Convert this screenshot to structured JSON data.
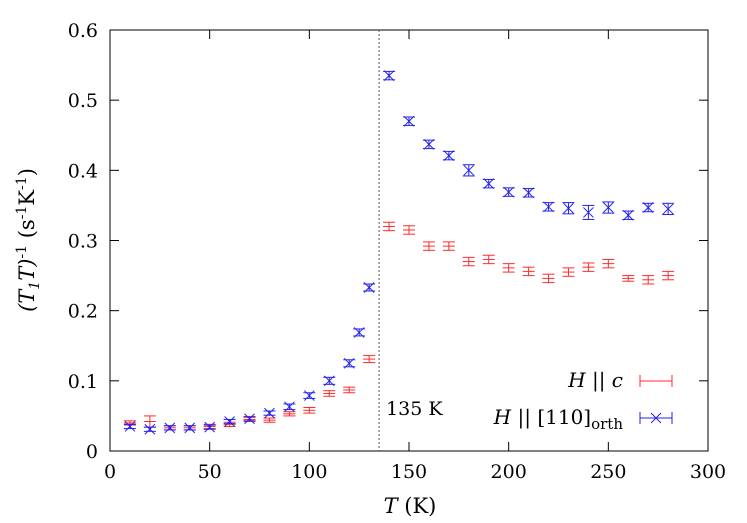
{
  "chart_data": {
    "type": "scatter",
    "title": "",
    "xlabel": {
      "main": "T",
      "unit": " (K)"
    },
    "ylabel": {
      "parts": [
        "(T",
        "1",
        "T)",
        "-1",
        " (s",
        "-1",
        "K",
        "-1",
        ")"
      ]
    },
    "xlim": [
      0,
      300
    ],
    "ylim": [
      0,
      0.6
    ],
    "xticks": [
      0,
      50,
      100,
      150,
      200,
      250,
      300
    ],
    "yticks": [
      0,
      0.1,
      0.2,
      0.3,
      0.4,
      0.5,
      0.6
    ],
    "xtick_labels": [
      "0",
      "50",
      "100",
      "150",
      "200",
      "250",
      "300"
    ],
    "ytick_labels": [
      "0",
      "0.1",
      "0.2",
      "0.3",
      "0.4",
      "0.5",
      "0.6"
    ],
    "grid": false,
    "legend_position": "bottom-right",
    "annotation": {
      "text": "135 K",
      "x": 135
    },
    "series": [
      {
        "name": "H || c",
        "legend": {
          "prefix": "H",
          "mid": " || ",
          "suffix": "c"
        },
        "color": "#ff2a2a",
        "marker": "errorbar",
        "x": [
          10,
          20,
          30,
          40,
          50,
          60,
          70,
          80,
          90,
          100,
          110,
          120,
          130,
          140,
          150,
          160,
          170,
          180,
          190,
          200,
          210,
          220,
          230,
          240,
          250,
          260,
          270,
          280
        ],
        "y": [
          0.04,
          0.042,
          0.033,
          0.033,
          0.035,
          0.038,
          0.045,
          0.044,
          0.053,
          0.058,
          0.082,
          0.087,
          0.131,
          0.32,
          0.315,
          0.292,
          0.292,
          0.27,
          0.273,
          0.261,
          0.256,
          0.246,
          0.255,
          0.262,
          0.267,
          0.246,
          0.244,
          0.25
        ],
        "yerr": [
          0.003,
          0.008,
          0.003,
          0.003,
          0.003,
          0.003,
          0.003,
          0.003,
          0.003,
          0.004,
          0.004,
          0.004,
          0.005,
          0.006,
          0.006,
          0.006,
          0.006,
          0.006,
          0.006,
          0.006,
          0.006,
          0.006,
          0.006,
          0.006,
          0.006,
          0.004,
          0.006,
          0.006
        ]
      },
      {
        "name": "H || [110]orth",
        "legend": {
          "prefix": "H",
          "mid": " || [110]",
          "suffix": "orth"
        },
        "color": "#2222ee",
        "marker": "x-errorbar",
        "x": [
          10,
          20,
          30,
          40,
          50,
          60,
          70,
          80,
          90,
          100,
          110,
          120,
          125,
          130,
          140,
          150,
          160,
          170,
          180,
          190,
          200,
          210,
          220,
          230,
          240,
          250,
          260,
          270,
          280
        ],
        "y": [
          0.035,
          0.031,
          0.033,
          0.033,
          0.034,
          0.042,
          0.046,
          0.054,
          0.063,
          0.079,
          0.1,
          0.125,
          0.169,
          0.233,
          0.535,
          0.47,
          0.437,
          0.421,
          0.4,
          0.381,
          0.369,
          0.368,
          0.348,
          0.346,
          0.34,
          0.347,
          0.336,
          0.347,
          0.345
        ],
        "yerr": [
          0.003,
          0.003,
          0.003,
          0.003,
          0.003,
          0.003,
          0.003,
          0.003,
          0.004,
          0.004,
          0.005,
          0.005,
          0.005,
          0.005,
          0.006,
          0.006,
          0.006,
          0.006,
          0.008,
          0.006,
          0.006,
          0.006,
          0.006,
          0.008,
          0.01,
          0.008,
          0.006,
          0.006,
          0.008
        ]
      }
    ]
  }
}
